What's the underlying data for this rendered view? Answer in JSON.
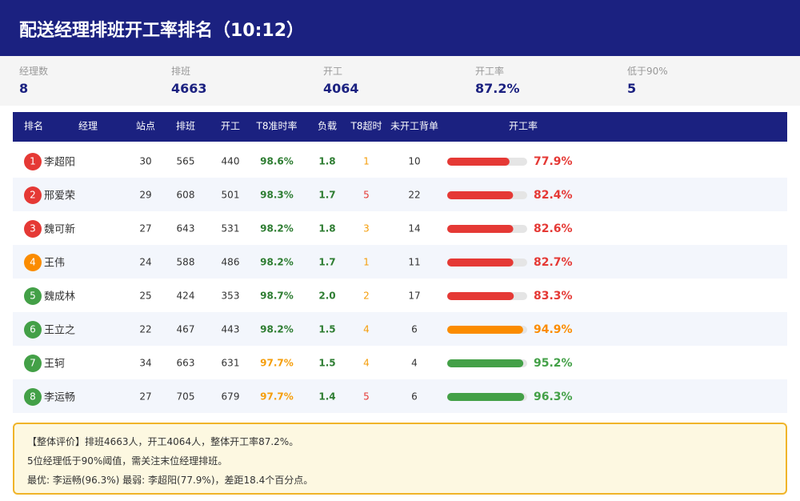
{
  "header": {
    "title": "配送经理排班开工率排名（10:12）"
  },
  "stats": [
    {
      "label": "经理数",
      "value": "8"
    },
    {
      "label": "排班",
      "value": "4663"
    },
    {
      "label": "开工",
      "value": "4064"
    },
    {
      "label": "开工率",
      "value": "87.2%"
    },
    {
      "label": "低于90%",
      "value": "5"
    }
  ],
  "table": {
    "columns": [
      "排名",
      "经理",
      "站点",
      "排班",
      "开工",
      "T8准时率",
      "负载",
      "T8超时",
      "未开工背单",
      "开工率"
    ],
    "rows": [
      {
        "rank": "1",
        "badge_color": "#e53935",
        "name": "李超阳",
        "sites": "30",
        "scheduled": "565",
        "started": "440",
        "t8_rate": "98.6%",
        "t8_color": "#2e7d32",
        "load": "1.8",
        "overtime": "1",
        "overtime_color": "#f59e0b",
        "backlog": "10",
        "rate": 77.9,
        "rate_label": "77.9%",
        "rate_color": "#e53935"
      },
      {
        "rank": "2",
        "badge_color": "#e53935",
        "name": "邢爱荣",
        "sites": "29",
        "scheduled": "608",
        "started": "501",
        "t8_rate": "98.3%",
        "t8_color": "#2e7d32",
        "load": "1.7",
        "overtime": "5",
        "overtime_color": "#e53935",
        "backlog": "22",
        "rate": 82.4,
        "rate_label": "82.4%",
        "rate_color": "#e53935"
      },
      {
        "rank": "3",
        "badge_color": "#e53935",
        "name": "魏可新",
        "sites": "27",
        "scheduled": "643",
        "started": "531",
        "t8_rate": "98.2%",
        "t8_color": "#2e7d32",
        "load": "1.8",
        "overtime": "3",
        "overtime_color": "#f59e0b",
        "backlog": "14",
        "rate": 82.6,
        "rate_label": "82.6%",
        "rate_color": "#e53935"
      },
      {
        "rank": "4",
        "badge_color": "#fb8c00",
        "name": "王伟",
        "sites": "24",
        "scheduled": "588",
        "started": "486",
        "t8_rate": "98.2%",
        "t8_color": "#2e7d32",
        "load": "1.7",
        "overtime": "1",
        "overtime_color": "#f59e0b",
        "backlog": "11",
        "rate": 82.7,
        "rate_label": "82.7%",
        "rate_color": "#e53935"
      },
      {
        "rank": "5",
        "badge_color": "#43a047",
        "name": "魏成林",
        "sites": "25",
        "scheduled": "424",
        "started": "353",
        "t8_rate": "98.7%",
        "t8_color": "#2e7d32",
        "load": "2.0",
        "overtime": "2",
        "overtime_color": "#f59e0b",
        "backlog": "17",
        "rate": 83.3,
        "rate_label": "83.3%",
        "rate_color": "#e53935"
      },
      {
        "rank": "6",
        "badge_color": "#43a047",
        "name": "王立之",
        "sites": "22",
        "scheduled": "467",
        "started": "443",
        "t8_rate": "98.2%",
        "t8_color": "#2e7d32",
        "load": "1.5",
        "overtime": "4",
        "overtime_color": "#f59e0b",
        "backlog": "6",
        "rate": 94.9,
        "rate_label": "94.9%",
        "rate_color": "#fb8c00"
      },
      {
        "rank": "7",
        "badge_color": "#43a047",
        "name": "王轲",
        "sites": "34",
        "scheduled": "663",
        "started": "631",
        "t8_rate": "97.7%",
        "t8_color": "#f59e0b",
        "load": "1.5",
        "overtime": "4",
        "overtime_color": "#f59e0b",
        "backlog": "4",
        "rate": 95.2,
        "rate_label": "95.2%",
        "rate_color": "#43a047"
      },
      {
        "rank": "8",
        "badge_color": "#43a047",
        "name": "李运畅",
        "sites": "27",
        "scheduled": "705",
        "started": "679",
        "t8_rate": "97.7%",
        "t8_color": "#f59e0b",
        "load": "1.4",
        "overtime": "5",
        "overtime_color": "#e53935",
        "backlog": "6",
        "rate": 96.3,
        "rate_label": "96.3%",
        "rate_color": "#43a047"
      }
    ]
  },
  "summary": [
    "【整体评价】排班4663人，开工4064人，整体开工率87.2%。",
    "5位经理低于90%阈值，需关注末位经理排班。",
    "最优: 李运畅(96.3%)  最弱: 李超阳(77.9%)，差距18.4个百分点。"
  ]
}
